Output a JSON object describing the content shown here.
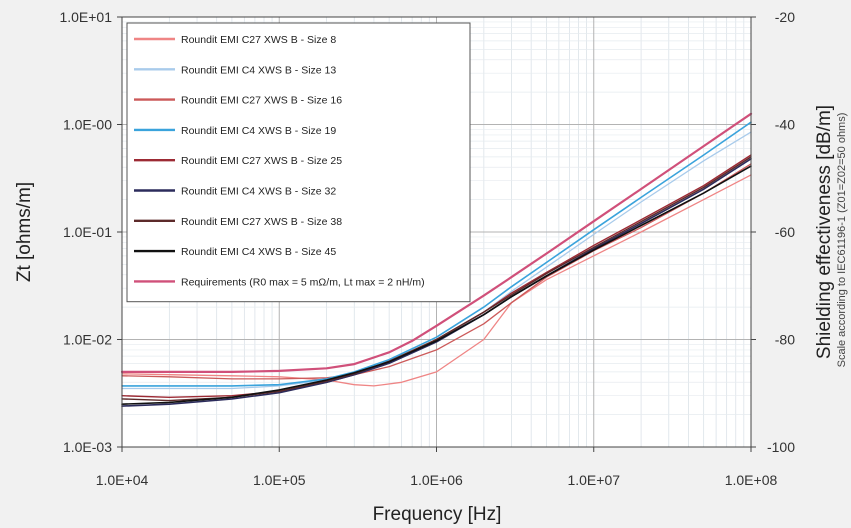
{
  "chart_data": {
    "type": "line",
    "xlabel": "Frequency [Hz]",
    "ylabel": "Zt [ohms/m]",
    "y2label": "Shielding effectiveness [dB/m]",
    "y2sublabel": "Scale according to IEC61196-1 (Z01=Z02=50 ohms)",
    "xscale": "log",
    "yscale": "log",
    "xlim": [
      10000,
      100000000
    ],
    "ylim": [
      0.001,
      10
    ],
    "y2lim": [
      -100,
      -20
    ],
    "xticks": [
      10000,
      100000,
      1000000,
      10000000,
      100000000
    ],
    "xtick_labels": [
      "1.0E+04",
      "1.0E+05",
      "1.0E+06",
      "1.0E+07",
      "1.0E+08"
    ],
    "yticks": [
      0.001,
      0.01,
      0.1,
      1,
      10
    ],
    "ytick_labels": [
      "1.0E-03",
      "1.0E-02",
      "1.0E-01",
      "1.0E-00",
      "1.0E+01"
    ],
    "y2ticks": [
      -100,
      -80,
      -60,
      -40,
      -20
    ],
    "y2tick_labels": [
      "-100",
      "-80",
      "-60",
      "-40",
      "-20"
    ],
    "grid": true,
    "legend_position": "top-left",
    "series": [
      {
        "name": "Roundit EMI C27 XWS B - Size 8",
        "color": "#ef8585",
        "width": 1.3,
        "x": [
          10000,
          20000,
          50000,
          100000,
          200000,
          300000,
          400000,
          600000,
          1000000,
          2000000,
          3000000,
          5000000,
          10000000,
          20000000,
          50000000,
          100000000
        ],
        "y": [
          0.0048,
          0.0047,
          0.0046,
          0.0045,
          0.0042,
          0.0038,
          0.0037,
          0.004,
          0.005,
          0.01,
          0.022,
          0.036,
          0.06,
          0.1,
          0.2,
          0.34
        ]
      },
      {
        "name": "Roundit EMI C4 XWS B - Size 13",
        "color": "#a9cbeb",
        "width": 1.3,
        "x": [
          10000,
          20000,
          50000,
          100000,
          200000,
          300000,
          500000,
          1000000,
          2000000,
          3000000,
          5000000,
          10000000,
          20000000,
          50000000,
          100000000
        ],
        "y": [
          0.0035,
          0.0035,
          0.0035,
          0.0037,
          0.0042,
          0.0048,
          0.006,
          0.0095,
          0.018,
          0.028,
          0.047,
          0.095,
          0.19,
          0.46,
          0.85
        ]
      },
      {
        "name": "Roundit EMI C27 XWS B - Size 16",
        "color": "#cc5a5a",
        "width": 1.3,
        "x": [
          10000,
          20000,
          50000,
          100000,
          200000,
          300000,
          500000,
          1000000,
          2000000,
          3000000,
          5000000,
          10000000,
          20000000,
          50000000,
          100000000
        ],
        "y": [
          0.0046,
          0.0045,
          0.0043,
          0.0043,
          0.0044,
          0.0047,
          0.0056,
          0.008,
          0.014,
          0.022,
          0.038,
          0.067,
          0.11,
          0.23,
          0.43
        ]
      },
      {
        "name": "Roundit EMI C4 XWS B - Size 19",
        "color": "#3aa3dc",
        "width": 1.6,
        "x": [
          10000,
          20000,
          50000,
          100000,
          200000,
          300000,
          500000,
          1000000,
          2000000,
          3000000,
          5000000,
          10000000,
          20000000,
          50000000,
          100000000
        ],
        "y": [
          0.0037,
          0.0037,
          0.0037,
          0.0038,
          0.0043,
          0.005,
          0.0065,
          0.0105,
          0.02,
          0.031,
          0.052,
          0.105,
          0.21,
          0.52,
          1.05
        ]
      },
      {
        "name": "Roundit EMI C27 XWS B - Size 25",
        "color": "#9c2a34",
        "width": 1.4,
        "x": [
          10000,
          20000,
          50000,
          100000,
          200000,
          300000,
          500000,
          1000000,
          2000000,
          3000000,
          5000000,
          10000000,
          20000000,
          50000000,
          100000000
        ],
        "y": [
          0.003,
          0.0029,
          0.003,
          0.0033,
          0.004,
          0.0047,
          0.0062,
          0.01,
          0.018,
          0.027,
          0.042,
          0.075,
          0.13,
          0.27,
          0.52
        ]
      },
      {
        "name": "Roundit EMI C4 XWS B - Size 32",
        "color": "#2c2c5c",
        "width": 1.6,
        "x": [
          10000,
          20000,
          50000,
          100000,
          200000,
          300000,
          500000,
          1000000,
          2000000,
          3000000,
          5000000,
          10000000,
          20000000,
          50000000,
          100000000
        ],
        "y": [
          0.0024,
          0.0025,
          0.0028,
          0.0032,
          0.004,
          0.0047,
          0.006,
          0.0095,
          0.017,
          0.025,
          0.039,
          0.07,
          0.12,
          0.25,
          0.48
        ]
      },
      {
        "name": "Roundit EMI C27 XWS B - Size 38",
        "color": "#5c2a2a",
        "width": 1.4,
        "x": [
          10000,
          20000,
          50000,
          100000,
          200000,
          300000,
          500000,
          1000000,
          2000000,
          3000000,
          5000000,
          10000000,
          20000000,
          50000000,
          100000000
        ],
        "y": [
          0.0028,
          0.0027,
          0.0029,
          0.0033,
          0.0041,
          0.0048,
          0.0063,
          0.01,
          0.018,
          0.026,
          0.041,
          0.072,
          0.125,
          0.26,
          0.5
        ]
      },
      {
        "name": "Roundit EMI C4 XWS B - Size 45",
        "color": "#111111",
        "width": 1.6,
        "x": [
          10000,
          20000,
          50000,
          100000,
          200000,
          300000,
          500000,
          1000000,
          2000000,
          3000000,
          5000000,
          10000000,
          20000000,
          50000000,
          100000000
        ],
        "y": [
          0.0025,
          0.0026,
          0.0029,
          0.0034,
          0.0042,
          0.0049,
          0.0062,
          0.0097,
          0.017,
          0.025,
          0.039,
          0.068,
          0.115,
          0.23,
          0.41
        ]
      },
      {
        "name": "Requirements (R0 max = 5 mΩ/m, Lt max = 2 nH/m)",
        "color": "#d0507a",
        "width": 2.2,
        "x": [
          10000,
          20000,
          50000,
          100000,
          200000,
          300000,
          500000,
          700000,
          1000000,
          2000000,
          3000000,
          5000000,
          10000000,
          20000000,
          50000000,
          100000000
        ],
        "y": [
          0.005,
          0.005,
          0.005,
          0.0051,
          0.0054,
          0.0059,
          0.0076,
          0.0097,
          0.0134,
          0.0256,
          0.0381,
          0.063,
          0.126,
          0.251,
          0.629,
          1.257
        ]
      }
    ]
  }
}
